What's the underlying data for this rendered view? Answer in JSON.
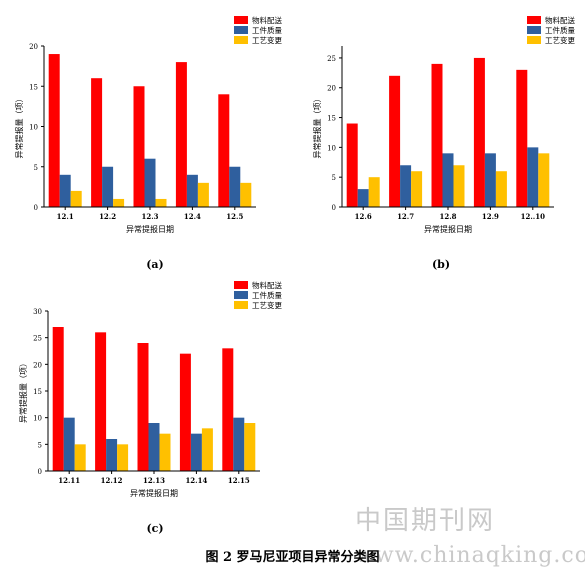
{
  "caption": "图 2 罗马尼亚项目异常分类图",
  "watermark": {
    "line1": "中国期刊网",
    "line2": "www.chinaqking.com"
  },
  "colors": {
    "series0": "#ff0000",
    "series1": "#2f5f9e",
    "series2": "#ffc000"
  },
  "chart_data": [
    {
      "type": "bar",
      "panel_label": "(a)",
      "xlabel": "异常提报日期",
      "ylabel": "异常提报量（项）",
      "categories": [
        "12.1",
        "12.2",
        "12.3",
        "12.4",
        "12.5"
      ],
      "ylim": [
        0,
        20
      ],
      "yticks": [
        0,
        5,
        10,
        15,
        20
      ],
      "legend_position": "top-right",
      "series": [
        {
          "name": "物料配送",
          "values": [
            19,
            16,
            15,
            18,
            14
          ]
        },
        {
          "name": "工件质量",
          "values": [
            4,
            5,
            6,
            4,
            5
          ]
        },
        {
          "name": "工艺变更",
          "values": [
            2,
            1,
            1,
            3,
            3
          ]
        }
      ]
    },
    {
      "type": "bar",
      "panel_label": "(b)",
      "xlabel": "异常提报日期",
      "ylabel": "异常提报量（项）",
      "categories": [
        "12.6",
        "12.7",
        "12.8",
        "12.9",
        "12..10"
      ],
      "ylim": [
        0,
        27
      ],
      "yticks": [
        0,
        5,
        10,
        15,
        20,
        25
      ],
      "legend_position": "top-right",
      "series": [
        {
          "name": "物料配送",
          "values": [
            14,
            22,
            24,
            25,
            23
          ]
        },
        {
          "name": "工件质量",
          "values": [
            3,
            7,
            9,
            9,
            10
          ]
        },
        {
          "name": "工艺变更",
          "values": [
            5,
            6,
            7,
            6,
            9
          ]
        }
      ]
    },
    {
      "type": "bar",
      "panel_label": "(c)",
      "xlabel": "异常提报日期",
      "ylabel": "异常提报量（项）",
      "categories": [
        "12.11",
        "12.12",
        "12.13",
        "12.14",
        "12.15"
      ],
      "ylim": [
        0,
        30
      ],
      "yticks": [
        0,
        5,
        10,
        15,
        20,
        25,
        30
      ],
      "legend_position": "top-right",
      "series": [
        {
          "name": "物料配送",
          "values": [
            27,
            26,
            24,
            22,
            23
          ]
        },
        {
          "name": "工件质量",
          "values": [
            10,
            6,
            9,
            7,
            10
          ]
        },
        {
          "name": "工艺变更",
          "values": [
            5,
            5,
            7,
            8,
            9
          ]
        }
      ]
    }
  ]
}
